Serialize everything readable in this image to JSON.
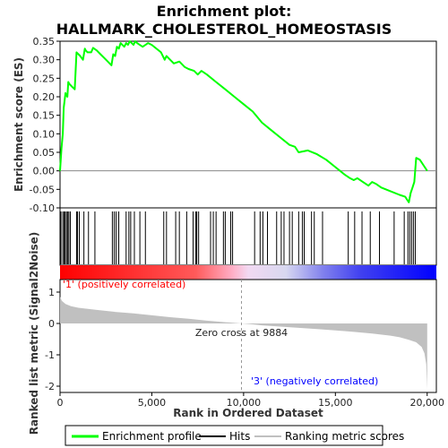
{
  "chart_data": {
    "type": "line",
    "title_line1": "Enrichment plot:",
    "title_line2": "HALLMARK_CHOLESTEROL_HOMEOSTASIS",
    "es_panel": {
      "ylabel": "Enrichment score (ES)",
      "ylim": [
        -0.1,
        0.35
      ],
      "yticks": [
        "0.35",
        "0.30",
        "0.25",
        "0.20",
        "0.15",
        "0.10",
        "0.05",
        "0.00",
        "-0.05",
        "-0.10"
      ],
      "series": [
        {
          "name": "Enrichment profile",
          "color": "#00ff00",
          "x": [
            0,
            80,
            150,
            200,
            300,
            400,
            450,
            500,
            700,
            800,
            900,
            1000,
            1100,
            1250,
            1350,
            1400,
            1500,
            1700,
            1800,
            2000,
            2200,
            2400,
            2600,
            2800,
            2900,
            3000,
            3100,
            3200,
            3300,
            3500,
            3600,
            3700,
            3800,
            4000,
            4100,
            4200,
            4500,
            4800,
            5000,
            5500,
            5700,
            5800,
            6000,
            6200,
            6500,
            6800,
            7000,
            7300,
            7500,
            7700,
            8000,
            8500,
            9000,
            9500,
            10000,
            10500,
            11000,
            11500,
            12000,
            12500,
            12800,
            13000,
            13500,
            14000,
            14500,
            15000,
            15500,
            15800,
            16000,
            16200,
            16500,
            16800,
            17000,
            17200,
            17500,
            18000,
            18500,
            18800,
            19000,
            19100,
            19200,
            19300,
            19400,
            19600,
            19800,
            20000
          ],
          "y": [
            0.0,
            0.06,
            0.1,
            0.17,
            0.21,
            0.2,
            0.24,
            0.235,
            0.225,
            0.22,
            0.32,
            0.315,
            0.31,
            0.3,
            0.33,
            0.325,
            0.32,
            0.32,
            0.332,
            0.325,
            0.315,
            0.305,
            0.295,
            0.285,
            0.315,
            0.31,
            0.335,
            0.33,
            0.345,
            0.335,
            0.345,
            0.34,
            0.35,
            0.34,
            0.35,
            0.345,
            0.335,
            0.345,
            0.34,
            0.32,
            0.3,
            0.31,
            0.3,
            0.29,
            0.295,
            0.28,
            0.275,
            0.27,
            0.26,
            0.27,
            0.26,
            0.24,
            0.22,
            0.2,
            0.18,
            0.16,
            0.13,
            0.11,
            0.09,
            0.07,
            0.065,
            0.05,
            0.055,
            0.045,
            0.03,
            0.01,
            -0.01,
            -0.02,
            -0.025,
            -0.02,
            -0.03,
            -0.04,
            -0.03,
            -0.035,
            -0.045,
            -0.055,
            -0.065,
            -0.07,
            -0.085,
            -0.06,
            -0.045,
            -0.03,
            0.035,
            0.03,
            0.015,
            0.0
          ]
        }
      ]
    },
    "hits": [
      50,
      150,
      220,
      280,
      350,
      420,
      480,
      560,
      900,
      950,
      1050,
      1300,
      1550,
      1900,
      2850,
      2950,
      3050,
      3200,
      3600,
      3750,
      3850,
      4050,
      4350,
      4650,
      5650,
      5800,
      6300,
      6500,
      6900,
      7250,
      7400,
      7450,
      7550,
      8200,
      8350,
      8500,
      8900,
      9000,
      9300,
      9400,
      10600,
      10900,
      11050,
      11300,
      11800,
      12050,
      12200,
      12500,
      12650,
      13000,
      13200,
      13300,
      13700,
      13850,
      14300,
      15700,
      16050,
      16450,
      16900,
      17400,
      18200,
      18750,
      18950,
      19050,
      19150,
      19250,
      19350
    ],
    "rank_panel": {
      "ylabel": "Ranked list metric (Signal2Noise)",
      "ylim": [
        -2.2,
        1.4
      ],
      "yticks": [
        "1",
        "0",
        "-1",
        "-2"
      ],
      "metric_x": [
        0,
        100,
        300,
        600,
        1000,
        2000,
        3000,
        4000,
        5000,
        6000,
        7000,
        8000,
        9000,
        9884,
        10500,
        11000,
        12000,
        13000,
        14000,
        15000,
        16000,
        17000,
        18000,
        18500,
        19000,
        19400,
        19700,
        19850,
        19950,
        20000
      ],
      "metric_y": [
        0.85,
        0.72,
        0.62,
        0.55,
        0.5,
        0.43,
        0.37,
        0.32,
        0.26,
        0.2,
        0.15,
        0.09,
        0.04,
        0.0,
        -0.03,
        -0.06,
        -0.1,
        -0.14,
        -0.18,
        -0.22,
        -0.27,
        -0.32,
        -0.39,
        -0.44,
        -0.52,
        -0.6,
        -0.75,
        -0.95,
        -1.3,
        -2.1
      ],
      "zero_cross_label": "Zero cross at 9884",
      "zero_cross_x": 9884,
      "positive_label": "'1' (positively correlated)",
      "negative_label": "'3' (negatively correlated)",
      "xlabel": "Rank in Ordered Dataset",
      "xticks": [
        "0",
        "5,000",
        "10,000",
        "15,000",
        "20,000"
      ],
      "xlim": [
        0,
        20500
      ]
    },
    "legend": [
      {
        "label": "Enrichment profile",
        "color": "#00ff00"
      },
      {
        "label": "Hits",
        "color": "#000000"
      },
      {
        "label": "Ranking metric scores",
        "color": "#c0c0c0"
      }
    ],
    "colors": {
      "positive": "#ff0000",
      "negative": "#0000ff",
      "metric_fill": "#c0c0c0"
    }
  }
}
